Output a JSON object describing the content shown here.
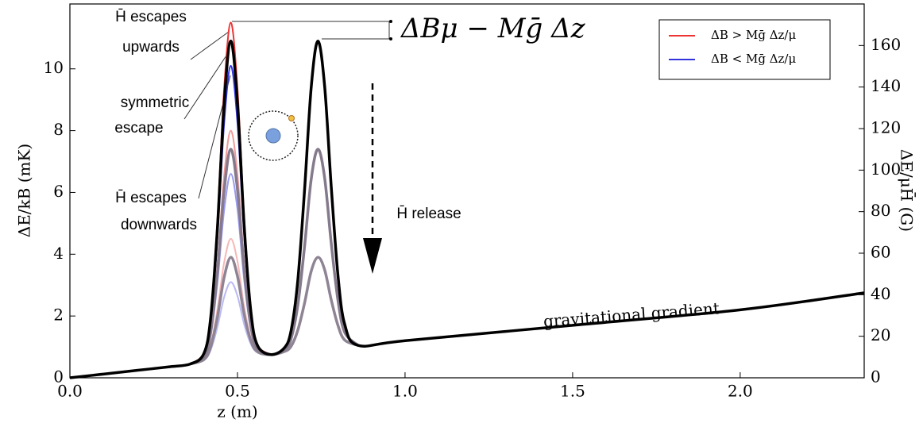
{
  "chart_data": {
    "type": "line",
    "xlabel": "z (m)",
    "ylabel": "ΔE/kB (mK)",
    "y2label": "ΔE/μH̄ (G)",
    "x": [
      0,
      0.1,
      0.2,
      0.3,
      0.36,
      0.4,
      0.42,
      0.44,
      0.46,
      0.48,
      0.5,
      0.52,
      0.54,
      0.56,
      0.6,
      0.64,
      0.66,
      0.68,
      0.7,
      0.72,
      0.74,
      0.76,
      0.78,
      0.8,
      0.82,
      0.86,
      1.0,
      1.5,
      2.0,
      2.37
    ],
    "xlim": [
      0,
      2.37
    ],
    "xticks": [
      {
        "value": 0,
        "label": "0.0"
      },
      0.5,
      {
        "value": 1,
        "label": "1.0"
      },
      1.5,
      {
        "value": 2,
        "label": "2.0"
      }
    ],
    "ylim": [
      0,
      12.1
    ],
    "yticks": [
      0,
      2,
      4,
      6,
      8,
      10
    ],
    "y2lim": [
      0,
      180
    ],
    "y2ticks": [
      0,
      20,
      40,
      60,
      80,
      100,
      120,
      140,
      160
    ],
    "grid": false,
    "legend": "upper right",
    "series": [
      {
        "color": "#f6b8b8",
        "width": 2,
        "values": [
          null,
          null,
          null,
          null,
          0.45,
          0.61,
          1.08,
          2.2,
          3.72,
          4.5,
          3.77,
          2.3,
          1.28,
          0.86,
          0.75,
          null,
          null,
          null,
          null,
          null,
          null,
          null,
          null,
          null,
          null,
          null,
          null,
          null,
          null,
          null
        ]
      },
      {
        "color": "#b9b9f4",
        "width": 2,
        "values": [
          null,
          null,
          null,
          null,
          0.45,
          0.57,
          0.89,
          1.63,
          2.6,
          3.1,
          2.65,
          1.73,
          1.09,
          0.82,
          0.75,
          null,
          null,
          null,
          null,
          null,
          null,
          null,
          null,
          null,
          null,
          null,
          null,
          null,
          null,
          null
        ]
      },
      {
        "color": "#f29a9a",
        "width": 2,
        "values": [
          null,
          null,
          null,
          null,
          0.45,
          0.71,
          1.55,
          3.63,
          6.52,
          8.0,
          6.57,
          3.73,
          1.75,
          0.96,
          0.75,
          null,
          null,
          null,
          null,
          null,
          null,
          null,
          null,
          null,
          null,
          null,
          null,
          null,
          null,
          null
        ]
      },
      {
        "color": "#9a9af0",
        "width": 2,
        "values": [
          null,
          null,
          null,
          null,
          0.45,
          0.67,
          1.36,
          3.06,
          5.4,
          6.6,
          5.45,
          3.16,
          1.56,
          0.92,
          0.75,
          null,
          null,
          null,
          null,
          null,
          null,
          null,
          null,
          null,
          null,
          null,
          null,
          null,
          null,
          null
        ]
      },
      {
        "color": "#8e8494",
        "width": 3.5,
        "values": [
          null,
          null,
          null,
          null,
          0.45,
          0.59,
          1.0,
          1.95,
          3.24,
          3.9,
          3.29,
          2.05,
          1.2,
          0.84,
          0.75,
          0.85,
          1.02,
          1.54,
          2.41,
          3.45,
          3.9,
          3.5,
          2.51,
          1.69,
          1.22,
          1.05,
          null,
          null,
          null,
          null
        ]
      },
      {
        "color": "#857a8c",
        "width": 3.5,
        "values": [
          null,
          null,
          null,
          null,
          0.45,
          0.69,
          1.47,
          3.39,
          6.04,
          7.4,
          6.09,
          3.49,
          1.67,
          0.94,
          0.75,
          0.91,
          1.27,
          2.35,
          4.23,
          6.43,
          7.4,
          6.48,
          4.33,
          2.5,
          1.47,
          1.05,
          null,
          null,
          null,
          null
        ]
      },
      {
        "name": "ΔB > Mḡ Δz/μ",
        "color": "#ee3333",
        "width": 2,
        "values": [
          null,
          null,
          null,
          null,
          0.45,
          0.81,
          2.02,
          5.07,
          9.32,
          11.5,
          9.37,
          5.17,
          2.22,
          1.06,
          0.75,
          null,
          null,
          null,
          null,
          null,
          null,
          null,
          null,
          null,
          null,
          null,
          null,
          null,
          null,
          null
        ]
      },
      {
        "name": "ΔB < Mḡ Δz/μ",
        "color": "#3333dd",
        "width": 2,
        "values": [
          null,
          null,
          null,
          null,
          0.45,
          0.77,
          1.83,
          4.5,
          8.2,
          10.1,
          8.25,
          4.6,
          2.03,
          1.02,
          0.75,
          null,
          null,
          null,
          null,
          null,
          null,
          null,
          null,
          null,
          null,
          null,
          null,
          null,
          null,
          null
        ]
      },
      {
        "color": "#000000",
        "width": 3.5,
        "values": [
          0,
          0.12,
          0.24,
          0.36,
          0.45,
          0.79,
          1.94,
          4.82,
          8.84,
          10.9,
          8.89,
          4.92,
          2.14,
          1.04,
          0.75,
          0.97,
          1.53,
          3.15,
          6.05,
          9.4,
          10.9,
          9.45,
          6.15,
          3.3,
          1.73,
          1.05,
          1.2,
          1.7,
          2.2,
          2.75
        ]
      }
    ],
    "annotations": [
      "H̄ escapes",
      "upwards",
      "symmetric",
      "escape",
      "H̄ escapes",
      "downwards",
      "ΔBμ − Mḡ Δz",
      "H̄ release",
      "gravitational gradient"
    ]
  }
}
